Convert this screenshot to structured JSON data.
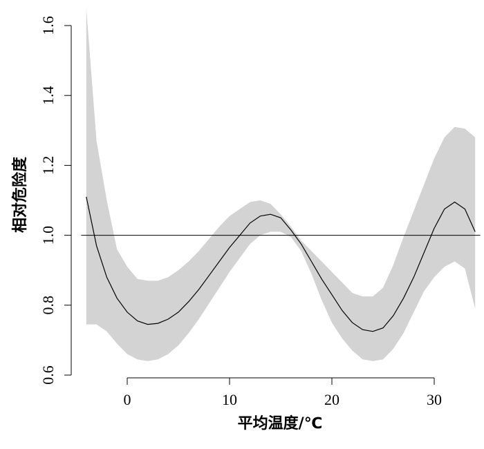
{
  "chart_data": {
    "type": "line",
    "title": "",
    "xlabel": "平均温度/℃",
    "ylabel": "相对危险度",
    "xlim": [
      -4.5,
      34.5
    ],
    "ylim": [
      0.6,
      1.62
    ],
    "x_ticks": [
      0,
      10,
      20,
      30
    ],
    "y_ticks": [
      0.6,
      0.8,
      1.0,
      1.2,
      1.4,
      1.6
    ],
    "x_tick_labels": [
      "0",
      "10",
      "20",
      "30"
    ],
    "y_tick_labels": [
      "0.6",
      "0.8",
      "1.0",
      "1.2",
      "1.4",
      "1.6"
    ],
    "reference_line": 1.0,
    "grid": false,
    "legend": "none",
    "colors": {
      "line": "#000000",
      "band": "#d3d3d3"
    },
    "series": [
      {
        "x": [
          -4,
          -3,
          -2,
          -1,
          0,
          1,
          2,
          3,
          4,
          5,
          6,
          7,
          8,
          9,
          10,
          11,
          12,
          13,
          14,
          15,
          16,
          17,
          18,
          19,
          20,
          21,
          22,
          23,
          24,
          25,
          26,
          27,
          28,
          29,
          30,
          31,
          32,
          33,
          34
        ],
        "y": [
          1.11,
          0.97,
          0.88,
          0.82,
          0.78,
          0.755,
          0.745,
          0.748,
          0.76,
          0.78,
          0.81,
          0.845,
          0.885,
          0.925,
          0.965,
          1.0,
          1.035,
          1.055,
          1.06,
          1.05,
          1.015,
          0.975,
          0.925,
          0.875,
          0.83,
          0.785,
          0.75,
          0.73,
          0.725,
          0.735,
          0.77,
          0.82,
          0.88,
          0.95,
          1.02,
          1.075,
          1.095,
          1.075,
          1.01
        ],
        "lower": [
          0.745,
          0.745,
          0.725,
          0.69,
          0.66,
          0.645,
          0.64,
          0.645,
          0.66,
          0.685,
          0.72,
          0.76,
          0.805,
          0.85,
          0.895,
          0.935,
          0.975,
          1.0,
          1.01,
          1.01,
          0.995,
          0.955,
          0.89,
          0.815,
          0.75,
          0.705,
          0.67,
          0.645,
          0.64,
          0.645,
          0.675,
          0.72,
          0.78,
          0.84,
          0.88,
          0.91,
          0.925,
          0.905,
          0.79
        ],
        "upper": [
          1.65,
          1.27,
          1.1,
          0.96,
          0.91,
          0.875,
          0.87,
          0.87,
          0.88,
          0.9,
          0.925,
          0.955,
          0.99,
          1.025,
          1.055,
          1.075,
          1.095,
          1.1,
          1.09,
          1.06,
          1.025,
          0.985,
          0.955,
          0.925,
          0.895,
          0.865,
          0.835,
          0.825,
          0.825,
          0.85,
          0.915,
          0.995,
          1.07,
          1.145,
          1.22,
          1.28,
          1.31,
          1.305,
          1.28
        ]
      }
    ]
  }
}
